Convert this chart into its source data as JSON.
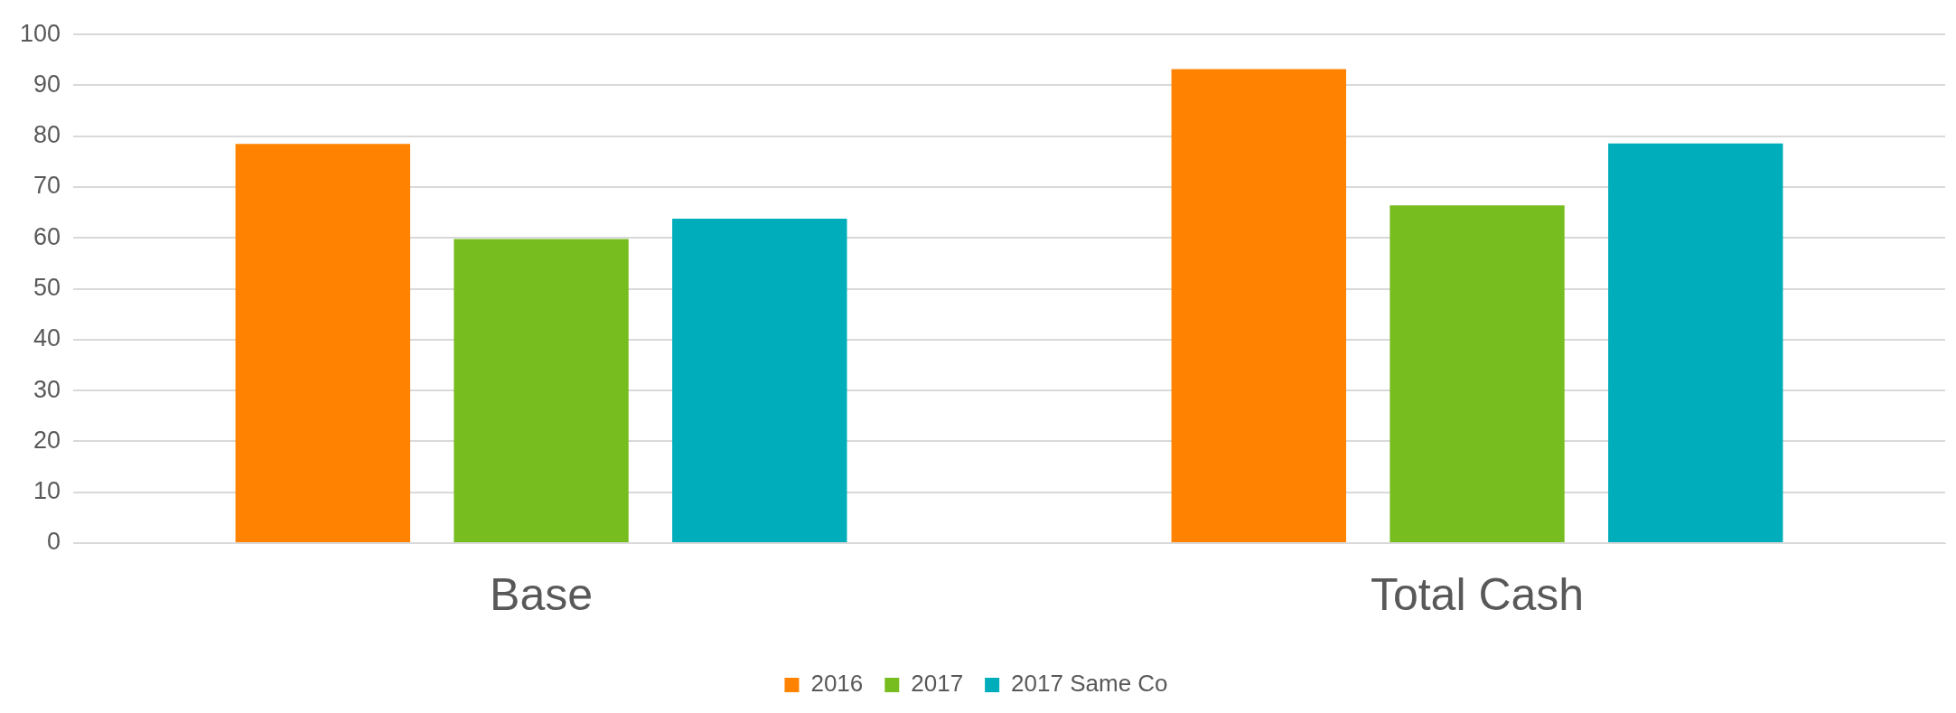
{
  "chart_data": {
    "type": "bar",
    "categories": [
      "Base",
      "Total Cash"
    ],
    "series": [
      {
        "name": "2016",
        "color": "#ff8300",
        "values": [
          78.5,
          93.2
        ]
      },
      {
        "name": "2017",
        "color": "#78bd20",
        "values": [
          59.8,
          66.4
        ]
      },
      {
        "name": "2017 Same Co",
        "color": "#00adba",
        "values": [
          63.8,
          78.6
        ]
      }
    ],
    "ylim": [
      0,
      100
    ],
    "yticks": [
      0,
      10,
      20,
      30,
      40,
      50,
      60,
      70,
      80,
      90,
      100
    ],
    "grid": "y",
    "legend": "bottom"
  }
}
